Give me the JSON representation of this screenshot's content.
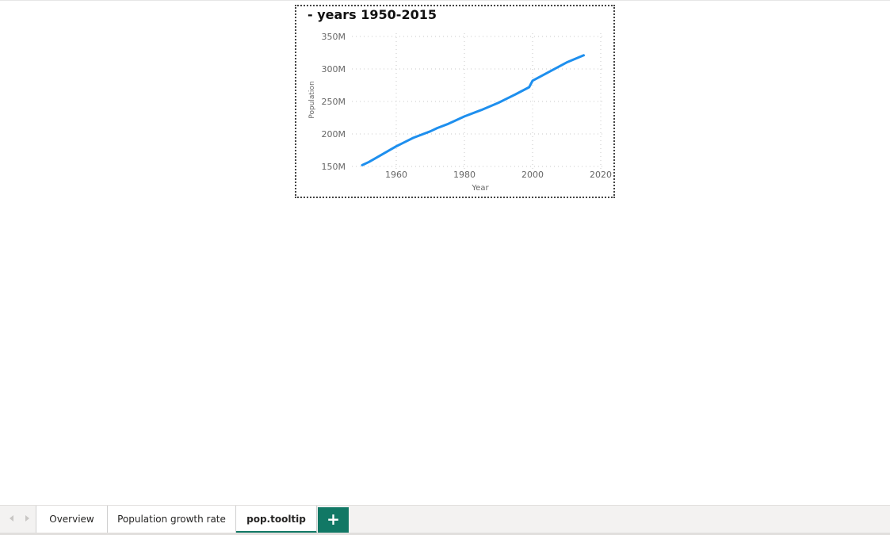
{
  "visual": {
    "title": "- years 1950-2015"
  },
  "chart_data": {
    "type": "line",
    "title": "- years 1950-2015",
    "xlabel": "Year",
    "ylabel": "Population",
    "xlim": [
      1950,
      2020
    ],
    "ylim": [
      150,
      350
    ],
    "x_ticks": [
      1960,
      1980,
      2000,
      2020
    ],
    "x_tick_labels": [
      "1960",
      "1980",
      "2000",
      "2020"
    ],
    "y_ticks": [
      150,
      200,
      250,
      300,
      350
    ],
    "y_tick_labels": [
      "150M",
      "200M",
      "250M",
      "300M",
      "350M"
    ],
    "grid": true,
    "color": "#1e8fee",
    "series": [
      {
        "x": [
          1950,
          1952,
          1955,
          1960,
          1965,
          1970,
          1972,
          1975,
          1980,
          1985,
          1990,
          1995,
          1999,
          2000,
          2005,
          2010,
          2015
        ],
        "y": [
          152,
          157,
          166,
          181,
          194,
          204,
          209,
          215,
          227,
          237,
          248,
          261,
          272,
          282,
          296,
          310,
          321
        ]
      }
    ]
  },
  "tabs": {
    "items": [
      {
        "label": "Overview"
      },
      {
        "label": "Population growth rate"
      },
      {
        "label": "pop.tooltip"
      }
    ],
    "add_label": "+"
  }
}
